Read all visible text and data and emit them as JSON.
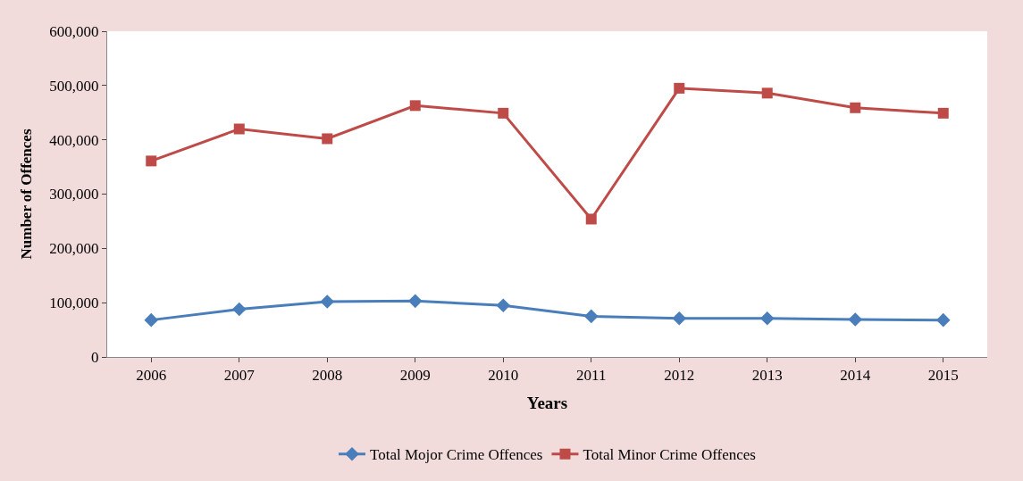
{
  "chart_data": {
    "type": "line",
    "xlabel": "Years",
    "ylabel": "Number of Offences",
    "categories": [
      "2006",
      "2007",
      "2008",
      "2009",
      "2010",
      "2011",
      "2012",
      "2013",
      "2014",
      "2015"
    ],
    "series": [
      {
        "name": "Total Mojor Crime Offences",
        "color": "#4a7ebb",
        "marker": "diamond",
        "values": [
          68000,
          88000,
          102000,
          103000,
          95000,
          75000,
          71000,
          71000,
          69000,
          68000
        ]
      },
      {
        "name": "Total Minor Crime Offences",
        "color": "#be4b48",
        "marker": "square",
        "values": [
          361000,
          420000,
          402000,
          463000,
          449000,
          254000,
          495000,
          486000,
          459000,
          449000
        ]
      }
    ],
    "ylim": [
      0,
      600000
    ],
    "yticks": [
      {
        "value": 0,
        "label": "0"
      },
      {
        "value": 100000,
        "label": "100,000"
      },
      {
        "value": 200000,
        "label": "200,000"
      },
      {
        "value": 300000,
        "label": "300,000"
      },
      {
        "value": 400000,
        "label": "400,000"
      },
      {
        "value": 500000,
        "label": "500,000"
      },
      {
        "value": 600000,
        "label": "600,000"
      }
    ],
    "legend": "bottom"
  }
}
